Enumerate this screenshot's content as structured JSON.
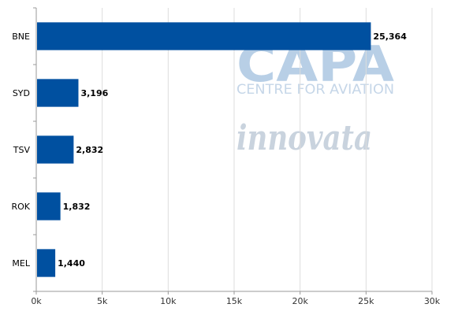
{
  "colors": {
    "bar": "#0050a0",
    "grid": "#dddddd",
    "axis": "#999999"
  },
  "watermark": {
    "logo": "CAPA",
    "tagline": "CENTRE FOR AVIATION",
    "brand": "innovata"
  },
  "chart_data": {
    "type": "bar",
    "orientation": "horizontal",
    "categories": [
      "BNE",
      "SYD",
      "TSV",
      "ROK",
      "MEL"
    ],
    "values": [
      25364,
      3196,
      2832,
      1832,
      1440
    ],
    "value_labels": [
      "25,364",
      "3,196",
      "2,832",
      "1,832",
      "1,440"
    ],
    "title": "",
    "xlabel": "",
    "ylabel": "",
    "xlim": [
      0,
      30000
    ],
    "x_ticks": [
      0,
      5000,
      10000,
      15000,
      20000,
      25000,
      30000
    ],
    "x_tick_labels": [
      "0k",
      "5k",
      "10k",
      "15k",
      "20k",
      "25k",
      "30k"
    ],
    "grid": "vertical",
    "legend": "none"
  }
}
